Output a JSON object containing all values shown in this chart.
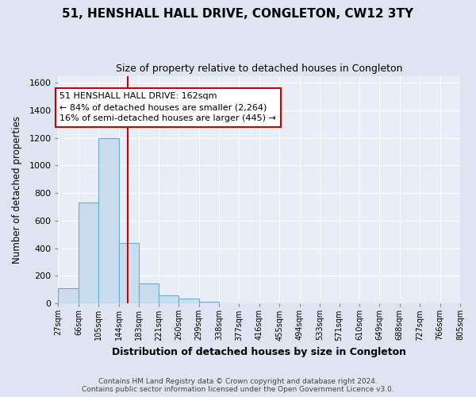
{
  "title": "51, HENSHALL HALL DRIVE, CONGLETON, CW12 3TY",
  "subtitle": "Size of property relative to detached houses in Congleton",
  "xlabel": "Distribution of detached houses by size in Congleton",
  "ylabel": "Number of detached properties",
  "bar_edges": [
    27,
    66,
    105,
    144,
    183,
    221,
    260,
    299,
    338,
    377,
    416,
    455,
    494,
    533,
    571,
    610,
    649,
    688,
    727,
    766,
    805
  ],
  "bar_heights": [
    110,
    730,
    1200,
    440,
    145,
    60,
    35,
    15,
    0,
    0,
    0,
    0,
    0,
    0,
    0,
    0,
    0,
    0,
    0,
    0
  ],
  "bar_color": "#c9ddef",
  "bar_edgecolor": "#6aaed6",
  "vline_x": 162,
  "vline_color": "#cc0000",
  "annotation_title": "51 HENSHALL HALL DRIVE: 162sqm",
  "annotation_line1": "← 84% of detached houses are smaller (2,264)",
  "annotation_line2": "16% of semi-detached houses are larger (445) →",
  "annotation_box_facecolor": "#ffffff",
  "annotation_box_edgecolor": "#cc0000",
  "ylim": [
    0,
    1650
  ],
  "yticks": [
    0,
    200,
    400,
    600,
    800,
    1000,
    1200,
    1400,
    1600
  ],
  "fig_facecolor": "#dde6f0",
  "ax_facecolor": "#e8eef7",
  "grid_color": "#ffffff",
  "footer_line1": "Contains HM Land Registry data © Crown copyright and database right 2024.",
  "footer_line2": "Contains public sector information licensed under the Open Government Licence v3.0."
}
